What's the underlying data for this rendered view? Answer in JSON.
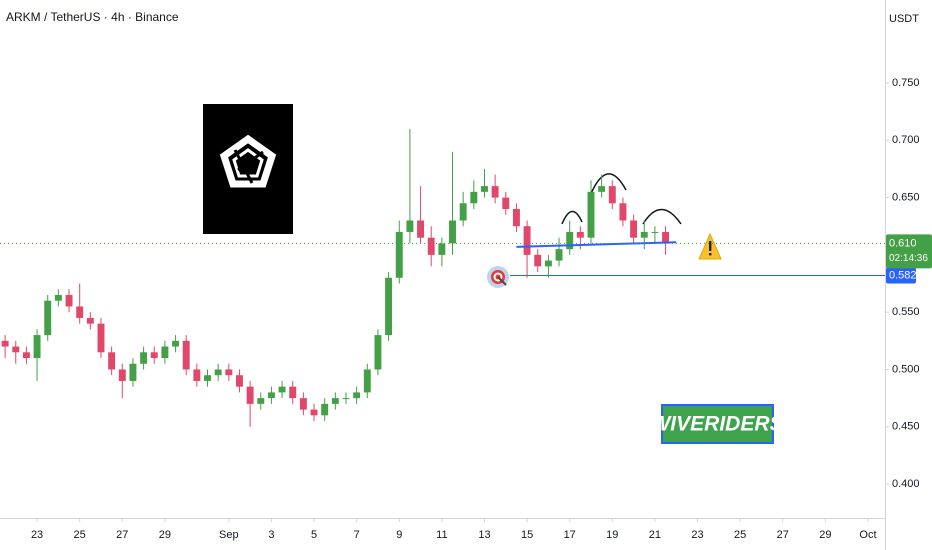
{
  "chart_data": {
    "type": "candlestick",
    "title": "ARKM / TetherUS · 4h · Binance",
    "currency": "USDT",
    "up_color": "#43a047",
    "down_color": "#e0476a",
    "x": [
      21.5,
      22,
      22.5,
      23,
      23.5,
      24,
      24.5,
      25,
      25.5,
      26,
      26.5,
      27,
      27.5,
      28,
      28.5,
      29,
      29.5,
      30,
      30.5,
      31,
      31.5,
      32,
      32.5,
      33,
      33.5,
      34,
      34.5,
      35,
      35.5,
      36,
      36.5,
      37,
      37.5,
      38,
      38.5,
      39,
      39.5,
      40,
      40.5,
      41,
      41.5,
      42,
      42.5,
      43,
      43.5,
      44,
      44.5,
      45,
      45.5,
      46,
      46.5,
      47,
      47.5,
      48,
      48.5,
      49,
      49.5,
      50,
      50.5,
      51,
      51.5,
      52,
      52.5
    ],
    "open": [
      0.525,
      0.52,
      0.515,
      0.51,
      0.53,
      0.56,
      0.565,
      0.555,
      0.545,
      0.54,
      0.515,
      0.5,
      0.49,
      0.505,
      0.515,
      0.51,
      0.52,
      0.525,
      0.5,
      0.49,
      0.495,
      0.5,
      0.495,
      0.485,
      0.47,
      0.475,
      0.48,
      0.485,
      0.475,
      0.465,
      0.46,
      0.47,
      0.475,
      0.475,
      0.48,
      0.5,
      0.53,
      0.58,
      0.62,
      0.63,
      0.615,
      0.6,
      0.61,
      0.63,
      0.645,
      0.655,
      0.66,
      0.65,
      0.64,
      0.625,
      0.6,
      0.59,
      0.595,
      0.605,
      0.62,
      0.615,
      0.655,
      0.66,
      0.645,
      0.63,
      0.615,
      0.62,
      0.62
    ],
    "high": [
      0.53,
      0.525,
      0.52,
      0.535,
      0.565,
      0.57,
      0.57,
      0.575,
      0.55,
      0.545,
      0.52,
      0.505,
      0.51,
      0.52,
      0.52,
      0.525,
      0.53,
      0.53,
      0.505,
      0.5,
      0.505,
      0.505,
      0.5,
      0.49,
      0.48,
      0.485,
      0.49,
      0.49,
      0.48,
      0.47,
      0.475,
      0.48,
      0.48,
      0.485,
      0.505,
      0.535,
      0.585,
      0.63,
      0.71,
      0.66,
      0.625,
      0.615,
      0.69,
      0.655,
      0.665,
      0.675,
      0.67,
      0.655,
      0.645,
      0.63,
      0.605,
      0.6,
      0.615,
      0.63,
      0.625,
      0.665,
      0.67,
      0.665,
      0.65,
      0.635,
      0.63,
      0.625,
      0.625
    ],
    "low": [
      0.51,
      0.505,
      0.505,
      0.49,
      0.525,
      0.555,
      0.55,
      0.54,
      0.535,
      0.51,
      0.495,
      0.475,
      0.485,
      0.5,
      0.505,
      0.505,
      0.515,
      0.495,
      0.485,
      0.485,
      0.49,
      0.49,
      0.48,
      0.45,
      0.465,
      0.47,
      0.475,
      0.47,
      0.46,
      0.455,
      0.455,
      0.465,
      0.47,
      0.47,
      0.475,
      0.495,
      0.525,
      0.575,
      0.61,
      0.61,
      0.59,
      0.59,
      0.6,
      0.625,
      0.64,
      0.65,
      0.645,
      0.635,
      0.62,
      0.58,
      0.585,
      0.58,
      0.59,
      0.6,
      0.605,
      0.61,
      0.65,
      0.64,
      0.625,
      0.61,
      0.605,
      0.61,
      0.6
    ],
    "close": [
      0.52,
      0.515,
      0.51,
      0.53,
      0.56,
      0.565,
      0.555,
      0.545,
      0.54,
      0.515,
      0.5,
      0.49,
      0.505,
      0.515,
      0.51,
      0.52,
      0.525,
      0.5,
      0.49,
      0.495,
      0.5,
      0.495,
      0.485,
      0.47,
      0.475,
      0.48,
      0.485,
      0.475,
      0.465,
      0.46,
      0.47,
      0.475,
      0.475,
      0.48,
      0.5,
      0.53,
      0.58,
      0.62,
      0.63,
      0.615,
      0.6,
      0.61,
      0.63,
      0.645,
      0.655,
      0.66,
      0.65,
      0.64,
      0.625,
      0.6,
      0.59,
      0.595,
      0.605,
      0.62,
      0.615,
      0.655,
      0.66,
      0.645,
      0.63,
      0.615,
      0.62,
      0.62,
      0.61
    ],
    "xlim": [
      21.26,
      62.8
    ],
    "xticks": [
      23,
      25,
      27,
      29,
      {
        "value": 32,
        "label": "Sep"
      },
      {
        "value": 34,
        "label": "3"
      },
      {
        "value": 36,
        "label": "5"
      },
      {
        "value": 38,
        "label": "7"
      },
      {
        "value": 40,
        "label": "9"
      },
      {
        "value": 42,
        "label": "11"
      },
      {
        "value": 44,
        "label": "13"
      },
      {
        "value": 46,
        "label": "15"
      },
      {
        "value": 48,
        "label": "17"
      },
      {
        "value": 50,
        "label": "19"
      },
      {
        "value": 52,
        "label": "21"
      },
      {
        "value": 54,
        "label": "23"
      },
      {
        "value": 56,
        "label": "25"
      },
      {
        "value": 58,
        "label": "27"
      },
      {
        "value": 60,
        "label": "29"
      },
      {
        "value": 62,
        "label": "Oct"
      }
    ],
    "ylim": [
      0.3704,
      0.8224
    ],
    "yticks": [
      {
        "value": 0.75,
        "label": "0.750"
      },
      {
        "value": 0.7,
        "label": "0.700"
      },
      {
        "value": 0.65,
        "label": "0.650"
      },
      {
        "value": 0.6,
        "label": "0.600"
      },
      {
        "value": 0.55,
        "label": "0.550"
      },
      {
        "value": 0.5,
        "label": "0.500"
      },
      {
        "value": 0.45,
        "label": "0.450"
      },
      {
        "value": 0.4,
        "label": "0.400"
      }
    ],
    "last_price": {
      "value": 0.61,
      "label": "0.610"
    },
    "countdown": "02:14:36",
    "target_level": {
      "value": 0.582,
      "label": "0.582"
    },
    "neckline": {
      "x": [
        45.5,
        53
      ],
      "y": [
        0.607,
        0.611
      ]
    },
    "watermark": "WIVERIDERS"
  }
}
